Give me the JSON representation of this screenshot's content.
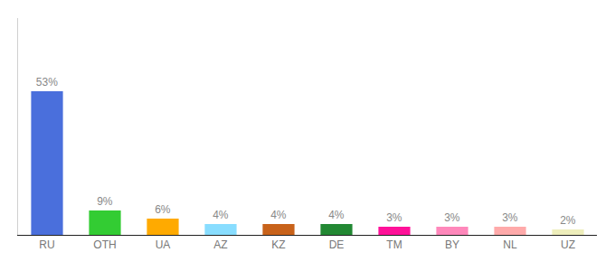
{
  "chart_data": {
    "type": "bar",
    "categories": [
      "RU",
      "OTH",
      "UA",
      "AZ",
      "KZ",
      "DE",
      "TM",
      "BY",
      "NL",
      "UZ"
    ],
    "values": [
      53,
      9,
      6,
      4,
      4,
      4,
      3,
      3,
      3,
      2
    ],
    "value_labels": [
      "53%",
      "9%",
      "6%",
      "4%",
      "4%",
      "4%",
      "3%",
      "3%",
      "3%",
      "2%"
    ],
    "colors": [
      "#4a6fdc",
      "#33cc33",
      "#ffaa00",
      "#88ddff",
      "#c8621a",
      "#228833",
      "#ff1199",
      "#ff88bb",
      "#ffaaaa",
      "#eeeebb"
    ],
    "ylim": [
      0,
      80
    ],
    "data_labels": true,
    "tick_labels": "x",
    "grid": false
  }
}
